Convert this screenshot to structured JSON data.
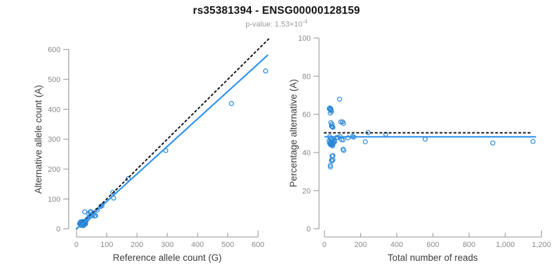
{
  "title": "rs35381394 - ENSG00000128159",
  "subtitle": {
    "text": "p-value: 1.53×10",
    "superscript": "-4"
  },
  "colors": {
    "point": "#2a87d8",
    "line": "#3094ef",
    "reference": "#141414",
    "axis": "#9a9a9a",
    "tick_label": "#8a8a8a",
    "axis_title": "#3c3c3c"
  },
  "chart_data": [
    {
      "type": "scatter",
      "xlabel": "Reference allele count (G)",
      "ylabel": "Alternative allele count (A)",
      "xlim": [
        0,
        640
      ],
      "ylim": [
        0,
        640
      ],
      "grid": false,
      "x_ticks": {
        "values": [
          0,
          100,
          200,
          300,
          400,
          500,
          600
        ],
        "labels": [
          "0",
          "100",
          "200",
          "300",
          "400",
          "500",
          "600"
        ]
      },
      "y_ticks": {
        "values": [
          0,
          100,
          200,
          300,
          400,
          500,
          600
        ],
        "labels": [
          "0",
          "100",
          "200",
          "300",
          "400",
          "500",
          "600"
        ]
      },
      "lines": [
        {
          "name": "identity-line",
          "style": "dotted",
          "x1": 0,
          "y1": 0,
          "x2": 640,
          "y2": 640
        },
        {
          "name": "regression-line",
          "style": "solid",
          "x1": 0,
          "y1": 0,
          "x2": 633,
          "y2": 582
        }
      ],
      "points": [
        [
          14,
          12
        ],
        [
          16,
          13
        ],
        [
          17,
          14
        ],
        [
          18,
          15
        ],
        [
          19,
          15
        ],
        [
          20,
          16
        ],
        [
          20,
          18
        ],
        [
          21,
          17
        ],
        [
          22,
          18
        ],
        [
          23,
          18
        ],
        [
          23,
          20
        ],
        [
          24,
          19
        ],
        [
          25,
          21
        ],
        [
          26,
          20
        ],
        [
          27,
          22
        ],
        [
          28,
          23
        ],
        [
          29,
          25
        ],
        [
          31,
          26
        ],
        [
          15,
          14
        ],
        [
          18,
          16
        ],
        [
          13,
          20
        ],
        [
          12,
          20
        ],
        [
          14,
          23
        ],
        [
          11,
          19
        ],
        [
          13,
          22
        ],
        [
          10,
          17
        ],
        [
          15,
          24
        ],
        [
          27,
          57
        ],
        [
          44,
          56
        ],
        [
          47,
          58
        ],
        [
          40,
          51
        ],
        [
          20,
          23
        ],
        [
          22,
          25
        ],
        [
          18,
          21
        ],
        [
          16,
          20
        ],
        [
          19,
          23
        ],
        [
          22,
          11
        ],
        [
          23,
          11
        ],
        [
          25,
          14
        ],
        [
          27,
          15
        ],
        [
          30,
          17
        ],
        [
          26,
          16
        ],
        [
          29,
          18
        ],
        [
          60,
          43
        ],
        [
          63,
          44
        ],
        [
          55,
          48
        ],
        [
          50,
          44
        ],
        [
          45,
          42
        ],
        [
          38,
          35
        ],
        [
          35,
          32
        ],
        [
          80,
          75
        ],
        [
          68,
          62
        ],
        [
          84,
          78
        ],
        [
          120,
          122
        ],
        [
          123,
          103
        ],
        [
          171,
          168
        ],
        [
          295,
          262
        ],
        [
          512,
          419
        ],
        [
          625,
          528
        ]
      ]
    },
    {
      "type": "scatter",
      "xlabel": "Total number of reads",
      "ylabel": "Percentage alternative (A)",
      "xlim": [
        0,
        1200
      ],
      "ylim": [
        0,
        100
      ],
      "grid": false,
      "x_ticks": {
        "values": [
          0,
          200,
          400,
          600,
          800,
          1000,
          1200
        ],
        "labels": [
          "0",
          "200",
          "400",
          "600",
          "800",
          "1,000",
          "1,200"
        ]
      },
      "y_ticks": {
        "values": [
          0,
          20,
          40,
          60,
          80,
          100
        ],
        "labels": [
          "0",
          "20",
          "40",
          "60",
          "80",
          "100"
        ]
      },
      "lines": [
        {
          "name": "expected-percentage-line",
          "style": "dotted",
          "x1": 0,
          "y1": 50.3,
          "x2": 1150,
          "y2": 50.3
        },
        {
          "name": "mean-percentage-line",
          "style": "solid",
          "x1": 0,
          "y1": 48.2,
          "x2": 1170,
          "y2": 48.2
        }
      ],
      "points": [
        [
          26,
          46.2
        ],
        [
          29,
          44.8
        ],
        [
          31,
          45.2
        ],
        [
          33,
          45.5
        ],
        [
          34,
          44.1
        ],
        [
          36,
          44.4
        ],
        [
          38,
          47.4
        ],
        [
          38,
          44.7
        ],
        [
          40,
          45.0
        ],
        [
          41,
          43.9
        ],
        [
          43,
          46.5
        ],
        [
          43,
          44.2
        ],
        [
          46,
          45.7
        ],
        [
          46,
          43.5
        ],
        [
          49,
          44.9
        ],
        [
          51,
          45.1
        ],
        [
          54,
          46.3
        ],
        [
          57,
          45.6
        ],
        [
          29,
          48.3
        ],
        [
          34,
          47.1
        ],
        [
          33,
          60.6
        ],
        [
          32,
          62.5
        ],
        [
          37,
          62.2
        ],
        [
          30,
          63.3
        ],
        [
          35,
          62.9
        ],
        [
          27,
          63.0
        ],
        [
          39,
          61.5
        ],
        [
          84,
          67.9
        ],
        [
          100,
          56.0
        ],
        [
          105,
          55.2
        ],
        [
          91,
          56.0
        ],
        [
          43,
          53.5
        ],
        [
          47,
          53.2
        ],
        [
          39,
          53.8
        ],
        [
          36,
          55.6
        ],
        [
          42,
          54.8
        ],
        [
          33,
          33.3
        ],
        [
          34,
          32.4
        ],
        [
          39,
          35.9
        ],
        [
          42,
          35.7
        ],
        [
          47,
          36.2
        ],
        [
          42,
          38.1
        ],
        [
          47,
          38.3
        ],
        [
          103,
          41.7
        ],
        [
          107,
          41.1
        ],
        [
          103,
          46.6
        ],
        [
          94,
          46.8
        ],
        [
          87,
          48.3
        ],
        [
          73,
          47.9
        ],
        [
          67,
          47.8
        ],
        [
          155,
          48.4
        ],
        [
          130,
          47.7
        ],
        [
          162,
          48.1
        ],
        [
          242,
          50.4
        ],
        [
          226,
          45.6
        ],
        [
          339,
          49.6
        ],
        [
          557,
          47.0
        ],
        [
          931,
          45.0
        ],
        [
          1153,
          45.8
        ]
      ]
    }
  ]
}
